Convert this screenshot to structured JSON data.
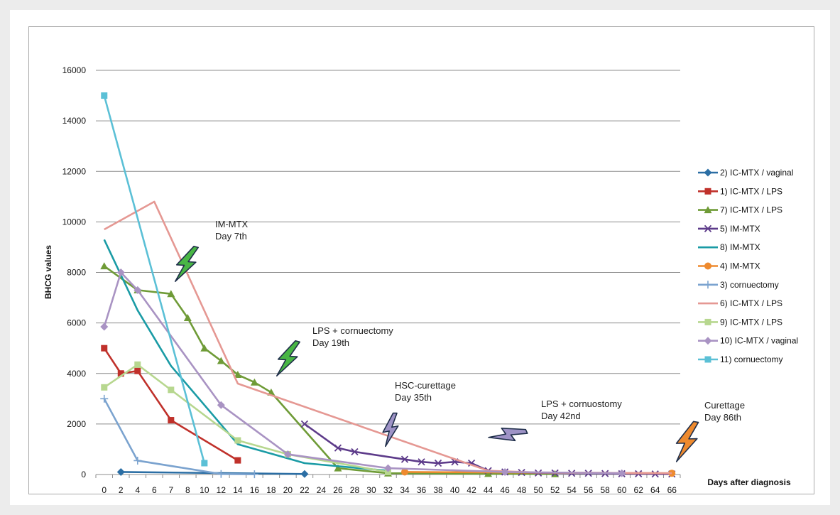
{
  "chart_data": {
    "type": "line",
    "xlabel": "Days after diagnosis",
    "ylabel": "BHCG values",
    "ylim": [
      0,
      16000
    ],
    "y_ticks": [
      "0",
      "2000",
      "4000",
      "6000",
      "8000",
      "10000",
      "12000",
      "14000",
      "16000"
    ],
    "categories": [
      "0",
      "2",
      "4",
      "6",
      "7",
      "8",
      "10",
      "12",
      "14",
      "16",
      "18",
      "20",
      "22",
      "24",
      "26",
      "28",
      "30",
      "32",
      "34",
      "36",
      "38",
      "40",
      "42",
      "44",
      "46",
      "48",
      "50",
      "52",
      "54",
      "56",
      "58",
      "60",
      "62",
      "64",
      "66"
    ],
    "grid": "horizontal",
    "legend_position": "right",
    "series": [
      {
        "name": "2) IC-MTX / vaginal",
        "color": "#2b6ea4",
        "marker": "diamond",
        "points": [
          [
            "2",
            100
          ],
          [
            "22",
            20
          ]
        ]
      },
      {
        "name": "1) IC-MTX / LPS",
        "color": "#c0312b",
        "marker": "square",
        "points": [
          [
            "0",
            5000
          ],
          [
            "2",
            4000
          ],
          [
            "4",
            4100
          ],
          [
            "7",
            2150
          ],
          [
            "14",
            560
          ]
        ]
      },
      {
        "name": "7) IC-MTX / LPS",
        "color": "#6f9b37",
        "marker": "triangle",
        "points": [
          [
            "0",
            8250
          ],
          [
            "4",
            7300
          ],
          [
            "7",
            7150
          ],
          [
            "8",
            6200
          ],
          [
            "10",
            5000
          ],
          [
            "12",
            4500
          ],
          [
            "14",
            3950
          ],
          [
            "16",
            3650
          ],
          [
            "18",
            3250
          ],
          [
            "26",
            250
          ],
          [
            "32",
            50
          ],
          [
            "44",
            30
          ],
          [
            "52",
            20
          ]
        ]
      },
      {
        "name": "5) IM-MTX",
        "color": "#5d3b8a",
        "marker": "x",
        "points": [
          [
            "22",
            2000
          ],
          [
            "26",
            1050
          ],
          [
            "28",
            900
          ],
          [
            "34",
            600
          ],
          [
            "36",
            500
          ],
          [
            "38",
            450
          ],
          [
            "40",
            500
          ],
          [
            "42",
            450
          ],
          [
            "44",
            150
          ],
          [
            "46",
            100
          ],
          [
            "48",
            80
          ],
          [
            "50",
            60
          ],
          [
            "52",
            60
          ],
          [
            "54",
            50
          ],
          [
            "56",
            50
          ],
          [
            "58",
            40
          ],
          [
            "60",
            30
          ],
          [
            "62",
            30
          ],
          [
            "64",
            20
          ],
          [
            "66",
            20
          ]
        ]
      },
      {
        "name": "8) IM-MTX",
        "color": "#1a9ba5",
        "marker": "none",
        "points": [
          [
            "0",
            9300
          ],
          [
            "4",
            6500
          ],
          [
            "7",
            4300
          ],
          [
            "14",
            1200
          ],
          [
            "22",
            450
          ],
          [
            "32",
            150
          ]
        ]
      },
      {
        "name": "4) IM-MTX",
        "color": "#ee8a2e",
        "marker": "circle",
        "points": [
          [
            "34",
            100
          ],
          [
            "66",
            50
          ]
        ]
      },
      {
        "name": "3) cornuectomy",
        "color": "#7ba3cf",
        "marker": "plus",
        "points": [
          [
            "0",
            3000
          ],
          [
            "4",
            550
          ],
          [
            "12",
            20
          ],
          [
            "16",
            10
          ]
        ]
      },
      {
        "name": "6) IC-MTX / LPS",
        "color": "#e59893",
        "marker": "none",
        "points": [
          [
            "0",
            9700
          ],
          [
            "6",
            10800
          ],
          [
            "14",
            3600
          ],
          [
            "44",
            150
          ],
          [
            "50",
            80
          ],
          [
            "66",
            50
          ]
        ]
      },
      {
        "name": "9) IC-MTX / LPS",
        "color": "#b7d78f",
        "marker": "square",
        "points": [
          [
            "0",
            3450
          ],
          [
            "4",
            4350
          ],
          [
            "7",
            3350
          ],
          [
            "14",
            1350
          ],
          [
            "20",
            800
          ],
          [
            "32",
            100
          ]
        ]
      },
      {
        "name": "10) IC-MTX / vaginal",
        "color": "#a993c3",
        "marker": "diamond",
        "points": [
          [
            "0",
            5850
          ],
          [
            "2",
            8000
          ],
          [
            "4",
            7300
          ],
          [
            "12",
            2750
          ],
          [
            "20",
            800
          ],
          [
            "32",
            250
          ],
          [
            "46",
            100
          ],
          [
            "60",
            50
          ]
        ]
      },
      {
        "name": "11) cornuectomy",
        "color": "#5bc0d6",
        "marker": "square",
        "points": [
          [
            "0",
            15000
          ],
          [
            "10",
            450
          ]
        ]
      }
    ],
    "annotations": [
      {
        "lines": [
          "IM-MTX",
          "Day 7th"
        ],
        "color": "#49b645"
      },
      {
        "lines": [
          "LPS + cornuectomy",
          "Day 19th"
        ],
        "color": "#49b645"
      },
      {
        "lines": [
          "HSC-curettage",
          "Day 35th"
        ],
        "color": "#9e93c6"
      },
      {
        "lines": [
          "LPS + cornuostomy",
          "Day 42nd"
        ],
        "color": "#9e93c6"
      },
      {
        "lines": [
          "Curettage",
          "Day 86th"
        ],
        "color": "#ee8a2e"
      }
    ]
  }
}
